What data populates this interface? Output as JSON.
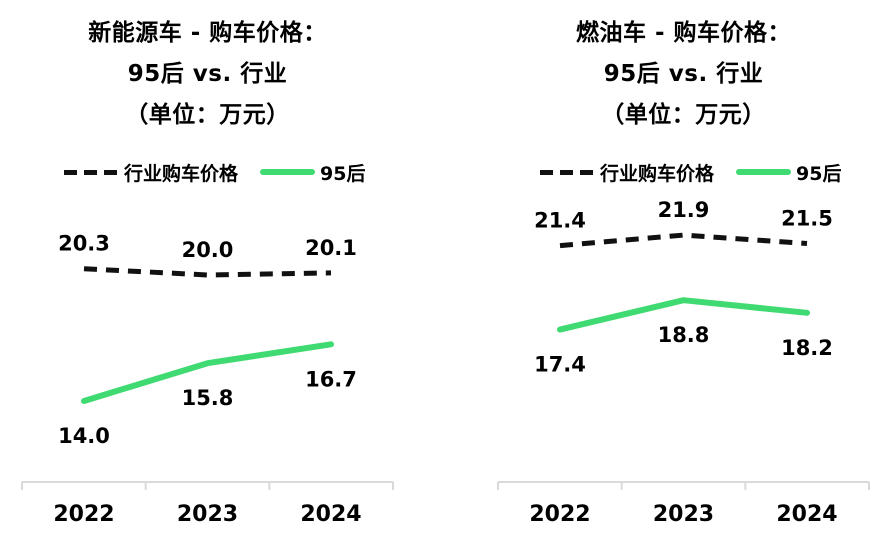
{
  "page": {
    "background": "#ffffff"
  },
  "colors": {
    "industry_line": "#111111",
    "gen95_line": "#3fda71",
    "axis": "#d9d9d9",
    "text": "#000000"
  },
  "chart_data": [
    {
      "type": "line",
      "title_lines": [
        "新能源车 - 购车价格：",
        "95后 vs. 行业",
        "（单位：万元）"
      ],
      "categories": [
        "2022",
        "2023",
        "2024"
      ],
      "series": [
        {
          "id": "industry",
          "name": "行业购车价格",
          "style": "dashed",
          "color": "#111111",
          "values": [
            20.3,
            20.0,
            20.1
          ]
        },
        {
          "id": "gen95",
          "name": "95后",
          "style": "solid",
          "color": "#3fda71",
          "values": [
            14.0,
            15.8,
            16.7
          ]
        }
      ],
      "legend_position": "top",
      "grid": false,
      "y_axis_visible": false,
      "data_labels_decimals": 1
    },
    {
      "type": "line",
      "title_lines": [
        "燃油车 - 购车价格：",
        "95后 vs. 行业",
        "（单位：万元）"
      ],
      "categories": [
        "2022",
        "2023",
        "2024"
      ],
      "series": [
        {
          "id": "industry",
          "name": "行业购车价格",
          "style": "dashed",
          "color": "#111111",
          "values": [
            21.4,
            21.9,
            21.5
          ]
        },
        {
          "id": "gen95",
          "name": "95后",
          "style": "solid",
          "color": "#3fda71",
          "values": [
            17.4,
            18.8,
            18.2
          ]
        }
      ],
      "legend_position": "top",
      "grid": false,
      "y_axis_visible": false,
      "data_labels_decimals": 1
    }
  ]
}
